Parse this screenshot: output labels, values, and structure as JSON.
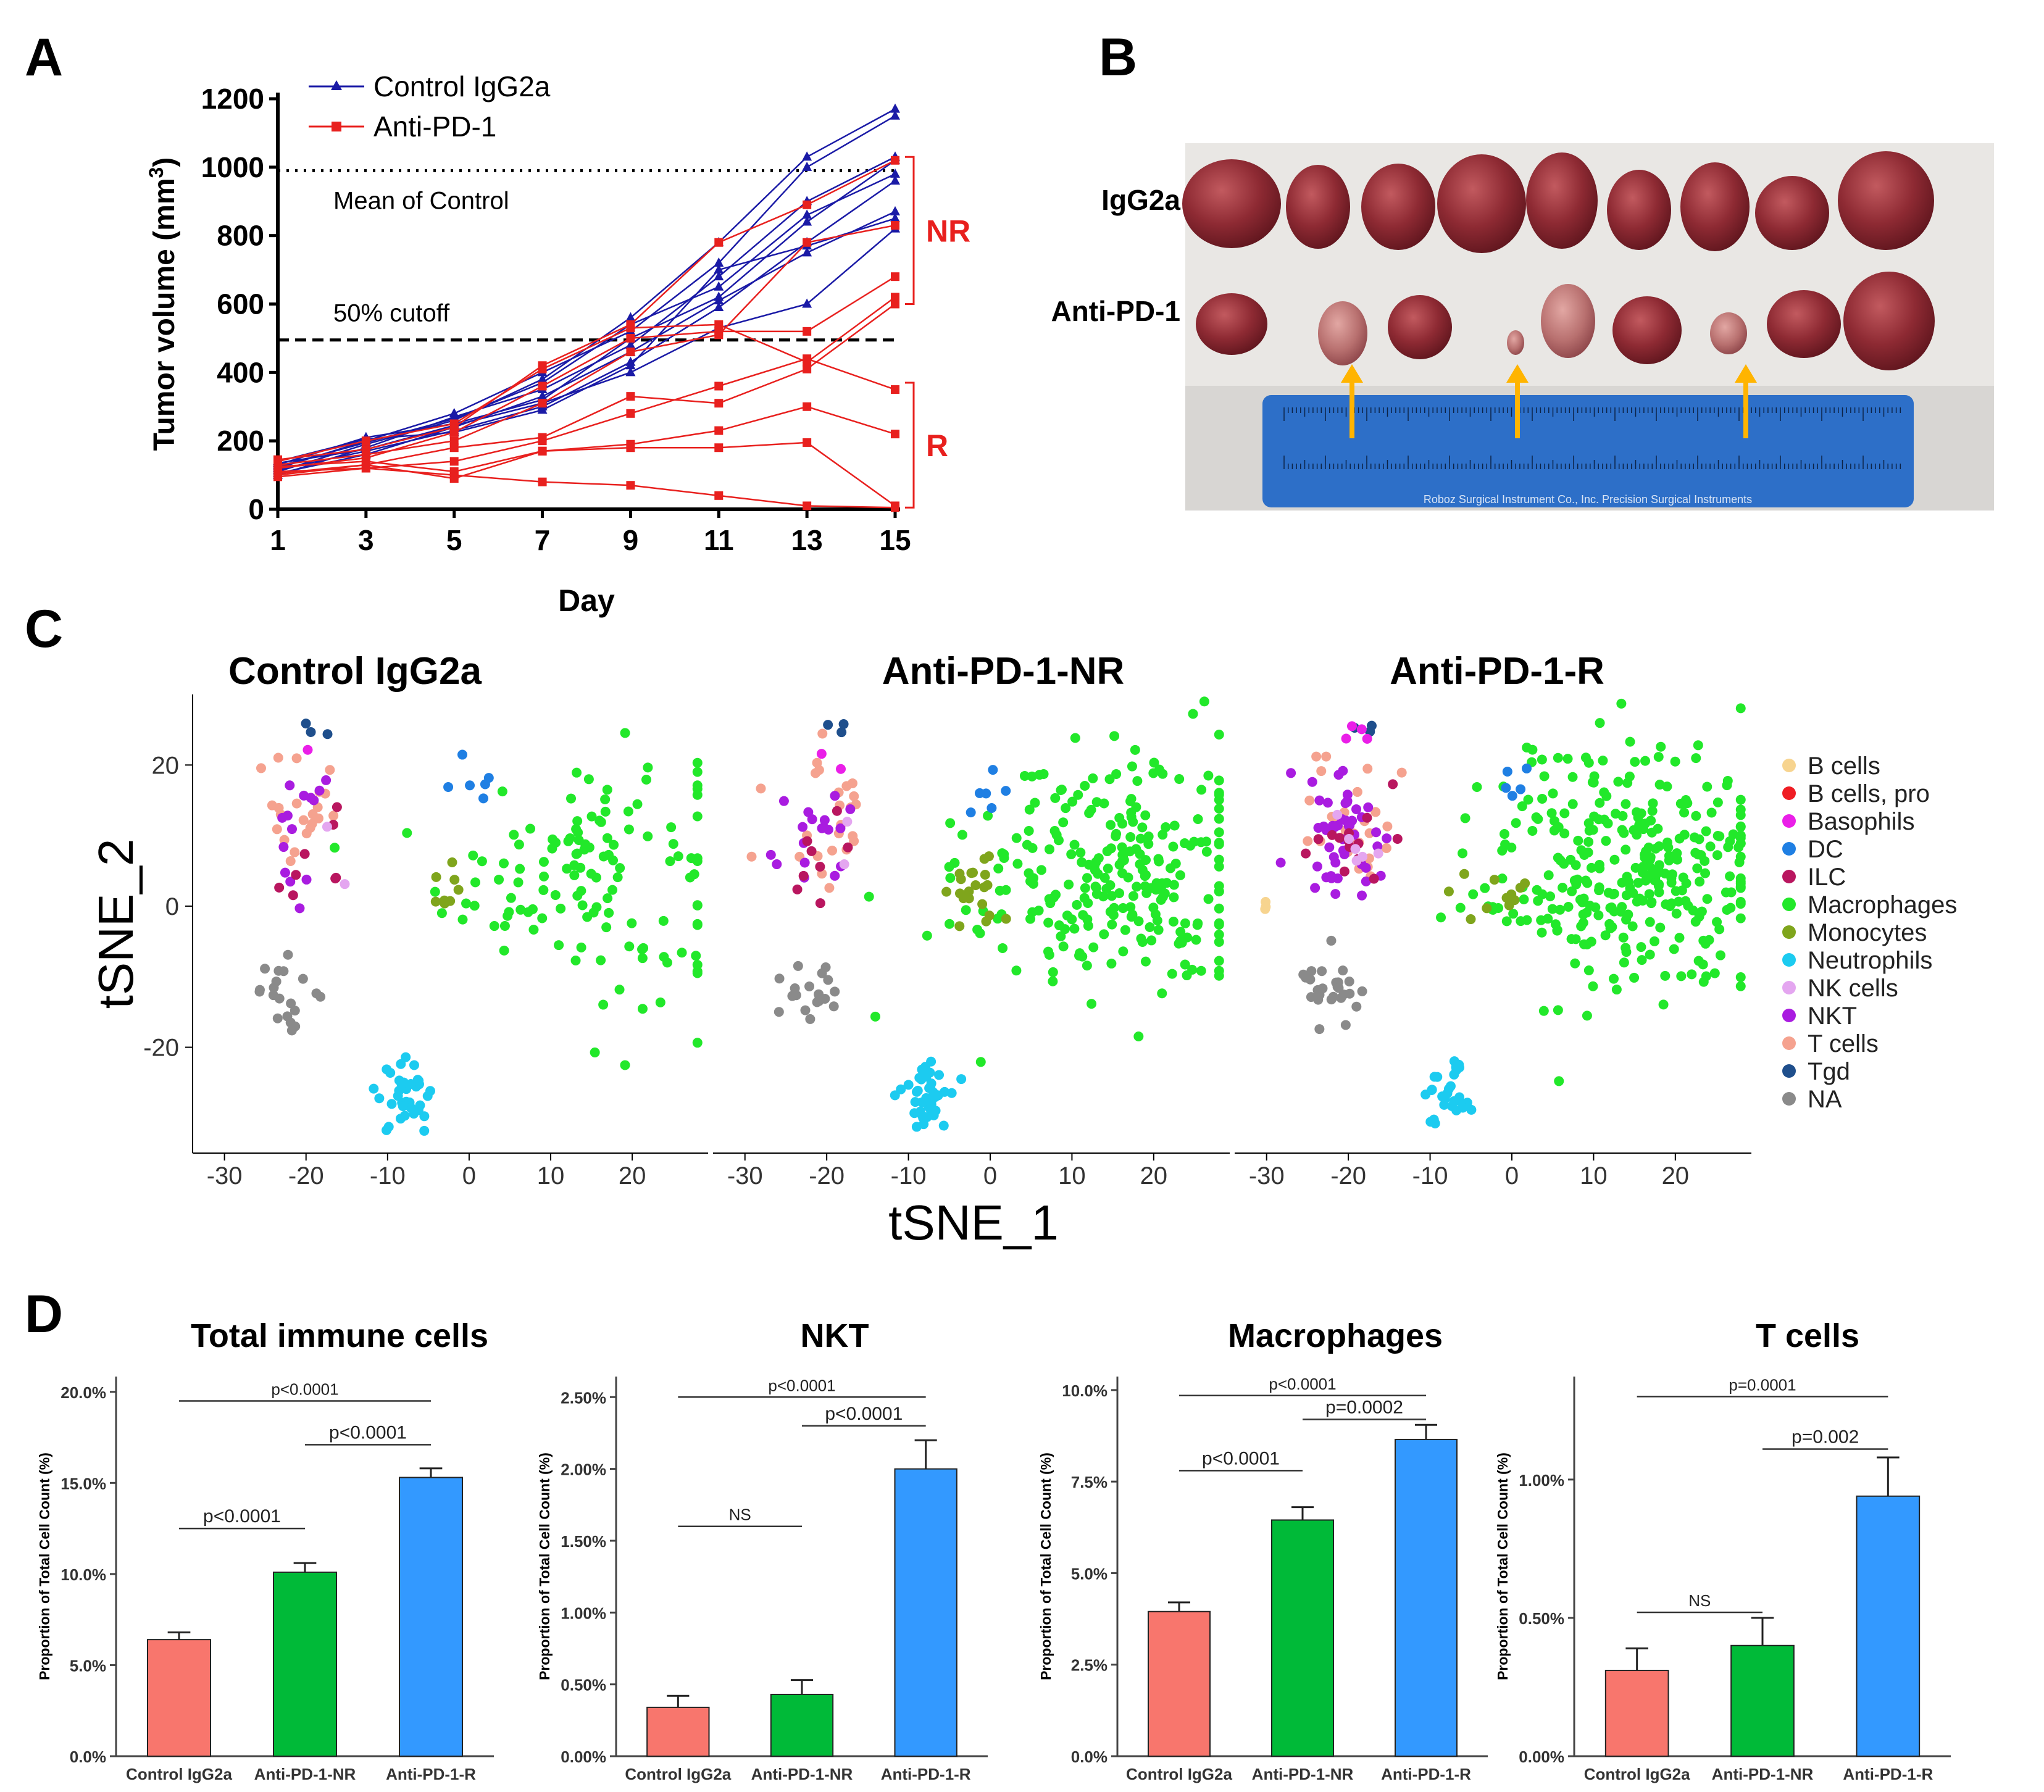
{
  "panels": {
    "A": "A",
    "B": "B",
    "C": "C",
    "D": "D"
  },
  "chart_data": [
    {
      "panel": "A",
      "type": "line",
      "ylabel": "Tumor volume (mm",
      "ylabel_sup": "3",
      "ylabel_close": ")",
      "xlabel": "Day",
      "x": [
        1,
        3,
        5,
        7,
        9,
        11,
        13,
        15
      ],
      "xticks": [
        "1",
        "3",
        "5",
        "7",
        "9",
        "11",
        "13",
        "15"
      ],
      "yticks": [
        "0",
        "200",
        "400",
        "600",
        "800",
        "1000",
        "1200"
      ],
      "ylim": [
        0,
        1200
      ],
      "legend": [
        "Control IgG2a",
        "Anti-PD-1"
      ],
      "colors": {
        "control": "#1a1aa6",
        "anti": "#e8201e"
      },
      "ref_lines": [
        {
          "y": 990,
          "label": "Mean of Control",
          "style": "dotted"
        },
        {
          "y": 495,
          "label": "50% cutoff",
          "style": "dashed"
        }
      ],
      "brackets": [
        {
          "label": "NR",
          "from": 600,
          "to": 1030
        },
        {
          "label": "R",
          "from": 5,
          "to": 370
        }
      ],
      "control_series": [
        [
          110,
          190,
          260,
          380,
          560,
          780,
          1030,
          1170
        ],
        [
          120,
          200,
          280,
          400,
          520,
          720,
          1000,
          1150
        ],
        [
          100,
          180,
          270,
          350,
          480,
          680,
          900,
          1030
        ],
        [
          130,
          210,
          250,
          320,
          500,
          620,
          840,
          1020
        ],
        [
          115,
          170,
          230,
          300,
          430,
          590,
          780,
          960
        ],
        [
          125,
          195,
          265,
          370,
          540,
          650,
          860,
          980
        ],
        [
          105,
          160,
          240,
          330,
          460,
          610,
          750,
          870
        ],
        [
          135,
          175,
          245,
          310,
          400,
          530,
          600,
          820
        ],
        [
          140,
          205,
          225,
          290,
          420,
          700,
          770,
          850
        ]
      ],
      "anti_series": [
        [
          145,
          175,
          240,
          420,
          540,
          780,
          890,
          1020
        ],
        [
          130,
          160,
          200,
          310,
          460,
          510,
          780,
          830
        ],
        [
          120,
          150,
          225,
          360,
          500,
          520,
          520,
          680
        ],
        [
          140,
          200,
          250,
          410,
          530,
          540,
          430,
          620
        ],
        [
          100,
          130,
          180,
          210,
          330,
          310,
          410,
          600
        ],
        [
          110,
          120,
          140,
          200,
          280,
          360,
          440,
          350
        ],
        [
          125,
          140,
          110,
          170,
          190,
          230,
          300,
          220
        ],
        [
          105,
          130,
          90,
          170,
          180,
          180,
          195,
          10
        ],
        [
          95,
          120,
          100,
          80,
          70,
          40,
          10,
          5
        ]
      ]
    },
    {
      "panel": "C",
      "type": "scatter",
      "xlabel": "tSNE_1",
      "ylabel": "tSNE_2",
      "xticks": [
        "-30",
        "-20",
        "-10",
        "0",
        "10",
        "20"
      ],
      "yticks": [
        "20",
        "0",
        "-20"
      ],
      "xlim": [
        -33,
        29
      ],
      "ylim": [
        -35,
        30
      ],
      "facets": [
        "Control IgG2a",
        "Anti-PD-1-NR",
        "Anti-PD-1-R"
      ],
      "legend": [
        {
          "label": "B cells",
          "color": "#f7d48f"
        },
        {
          "label": "B cells, pro",
          "color": "#ef1d24"
        },
        {
          "label": "Basophils",
          "color": "#ea1fe8"
        },
        {
          "label": "DC",
          "color": "#1f7fe3"
        },
        {
          "label": "ILC",
          "color": "#b9165f"
        },
        {
          "label": "Macrophages",
          "color": "#22e82a"
        },
        {
          "label": "Monocytes",
          "color": "#7fa51c"
        },
        {
          "label": "Neutrophils",
          "color": "#1ccbf0"
        },
        {
          "label": "NK cells",
          "color": "#e4a6f0"
        },
        {
          "label": "NKT",
          "color": "#a91ce0"
        },
        {
          "label": "T cells",
          "color": "#f5a28f"
        },
        {
          "label": "Tgd",
          "color": "#1f4f8c"
        },
        {
          "label": "NA",
          "color": "#8a8a8a"
        }
      ],
      "clusters": [
        {
          "cell": "Macrophages",
          "cx": 15,
          "cy": 5,
          "sx": 9,
          "sy": 9,
          "n": [
            130,
            260,
            330
          ]
        },
        {
          "cell": "Neutrophils",
          "cx": -8,
          "cy": -27,
          "sx": 1.8,
          "sy": 2.5,
          "n": [
            35,
            40,
            28
          ]
        },
        {
          "cell": "NA",
          "cx": -22,
          "cy": -12,
          "sx": 1.8,
          "sy": 2.2,
          "n": [
            20,
            20,
            28
          ]
        },
        {
          "cell": "T cells",
          "cx": -20,
          "cy": 12,
          "sx": 3,
          "sy": 5,
          "n": [
            22,
            24,
            30
          ]
        },
        {
          "cell": "NKT",
          "cx": -21,
          "cy": 10,
          "sx": 2.8,
          "sy": 4.5,
          "n": [
            14,
            18,
            50
          ]
        },
        {
          "cell": "ILC",
          "cx": -20,
          "cy": 8,
          "sx": 3,
          "sy": 4,
          "n": [
            8,
            8,
            14
          ]
        },
        {
          "cell": "Monocytes",
          "cx": -2,
          "cy": 2,
          "sx": 2,
          "sy": 2,
          "n": [
            8,
            20,
            12
          ]
        },
        {
          "cell": "DC",
          "cx": 0,
          "cy": 17,
          "sx": 1.5,
          "sy": 1.5,
          "n": [
            6,
            6,
            5
          ]
        },
        {
          "cell": "Tgd",
          "cx": -19,
          "cy": 25,
          "sx": 0.8,
          "sy": 1,
          "n": [
            3,
            3,
            3
          ]
        },
        {
          "cell": "NK cells",
          "cx": -19,
          "cy": 8,
          "sx": 2,
          "sy": 3,
          "n": [
            2,
            2,
            6
          ]
        },
        {
          "cell": "Basophils",
          "cx": -19,
          "cy": 22,
          "sx": 1,
          "sy": 2,
          "n": [
            1,
            2,
            4
          ]
        },
        {
          "cell": "B cells",
          "cx": -30,
          "cy": 0,
          "sx": 0.4,
          "sy": 0.4,
          "n": [
            0,
            0,
            3
          ]
        }
      ]
    },
    {
      "panel": "D",
      "type": "bar",
      "ylabel": "Proportion of Total Cell Count (%)",
      "categories": [
        "Control IgG2a",
        "Anti-PD-1-NR",
        "Anti-PD-1-R"
      ],
      "colors": [
        "#f8766d",
        "#00ba38",
        "#3399ff"
      ],
      "subplots": [
        {
          "title": "Total immune cells",
          "values": [
            6.4,
            10.1,
            15.3
          ],
          "errors": [
            0.4,
            0.5,
            0.5
          ],
          "ylim": [
            0,
            20.5
          ],
          "ticks": [
            0,
            5,
            10,
            15,
            20
          ],
          "tick_labels": [
            "0.0%",
            "5.0%",
            "10.0%",
            "15.0%",
            "20.0%"
          ],
          "comparisons": [
            {
              "a": 0,
              "b": 1,
              "y": 12.5,
              "label": "p<0.0001"
            },
            {
              "a": 1,
              "b": 2,
              "y": 17.1,
              "label": "p<0.0001"
            },
            {
              "a": 0,
              "b": 2,
              "y": 19.5,
              "label": "p<0.0001"
            }
          ]
        },
        {
          "title": "NKT",
          "values": [
            0.34,
            0.43,
            2.0
          ],
          "errors": [
            0.08,
            0.1,
            0.2
          ],
          "ylim": [
            0,
            2.6
          ],
          "ticks": [
            0,
            0.5,
            1,
            1.5,
            2,
            2.5
          ],
          "tick_labels": [
            "0.00%",
            "0.50%",
            "1.00%",
            "1.50%",
            "2.00%",
            "2.50%"
          ],
          "comparisons": [
            {
              "a": 0,
              "b": 1,
              "y": 1.6,
              "label": "NS"
            },
            {
              "a": 1,
              "b": 2,
              "y": 2.3,
              "label": "p<0.0001"
            },
            {
              "a": 0,
              "b": 2,
              "y": 2.5,
              "label": "p<0.0001"
            }
          ]
        },
        {
          "title": "Macrophages",
          "values": [
            3.95,
            6.45,
            8.65
          ],
          "errors": [
            0.25,
            0.35,
            0.4
          ],
          "ylim": [
            0,
            10.2
          ],
          "ticks": [
            0,
            2.5,
            5,
            7.5,
            10
          ],
          "tick_labels": [
            "0.0%",
            "2.5%",
            "5.0%",
            "7.5%",
            "10.0%"
          ],
          "comparisons": [
            {
              "a": 0,
              "b": 1,
              "y": 7.8,
              "label": "p<0.0001"
            },
            {
              "a": 1,
              "b": 2,
              "y": 9.2,
              "label": "p=0.0002"
            },
            {
              "a": 0,
              "b": 2,
              "y": 9.85,
              "label": "p<0.0001"
            }
          ]
        },
        {
          "title": "T cells",
          "values": [
            0.31,
            0.4,
            0.94
          ],
          "errors": [
            0.08,
            0.1,
            0.14
          ],
          "ylim": [
            0,
            1.35
          ],
          "ticks": [
            0,
            0.5,
            1
          ],
          "tick_labels": [
            "0.00%",
            "0.50%",
            "1.00%"
          ],
          "comparisons": [
            {
              "a": 0,
              "b": 1,
              "y": 0.52,
              "label": "NS"
            },
            {
              "a": 1,
              "b": 2,
              "y": 1.11,
              "label": "p=0.002"
            },
            {
              "a": 0,
              "b": 2,
              "y": 1.3,
              "label": "p=0.0001"
            }
          ]
        }
      ]
    }
  ],
  "photo": {
    "row1_label": "IgG2a",
    "row2_label": "Anti-PD-1",
    "ruler_text": "Roboz Surgical Instrument Co., Inc.    Precision Surgical Instruments"
  }
}
